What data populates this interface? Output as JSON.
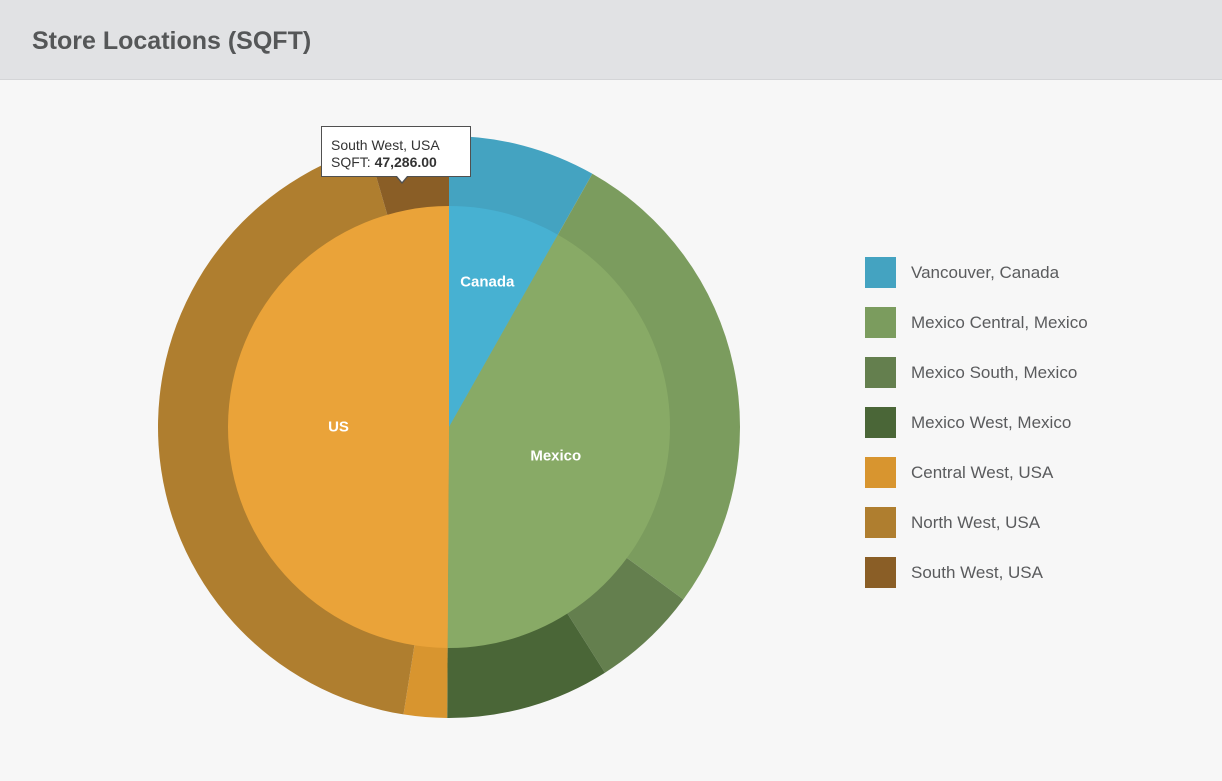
{
  "header": {
    "title": "Store Locations (SQFT)"
  },
  "chart_data": {
    "type": "pie",
    "subtype": "nested-donut",
    "inner": [
      {
        "label": "Canada",
        "value": 0.082,
        "color": "#47b1d2"
      },
      {
        "label": "Mexico",
        "value": 0.419,
        "color": "#88aa66"
      },
      {
        "label": "US",
        "value": 0.499,
        "color": "#eaa339"
      }
    ],
    "outer": [
      {
        "label": "Vancouver, Canada",
        "value": 0.082,
        "color": "#44a3c1"
      },
      {
        "label": "Mexico Central, Mexico",
        "value": 0.269,
        "color": "#7b9c5e"
      },
      {
        "label": "Mexico South, Mexico",
        "value": 0.059,
        "color": "#647f4e"
      },
      {
        "label": "Mexico West, Mexico",
        "value": 0.091,
        "color": "#4a6637"
      },
      {
        "label": "Central West, USA",
        "value": 0.024,
        "color": "#d8952f"
      },
      {
        "label": "North West, USA",
        "value": 0.43,
        "color": "#af7e2f"
      },
      {
        "label": "South West, USA",
        "value": 0.045,
        "color": "#8a5e26"
      }
    ],
    "legend_position": "right"
  },
  "tooltip": {
    "title": "South West, USA",
    "label": "SQFT: ",
    "value": "47,286.00"
  }
}
